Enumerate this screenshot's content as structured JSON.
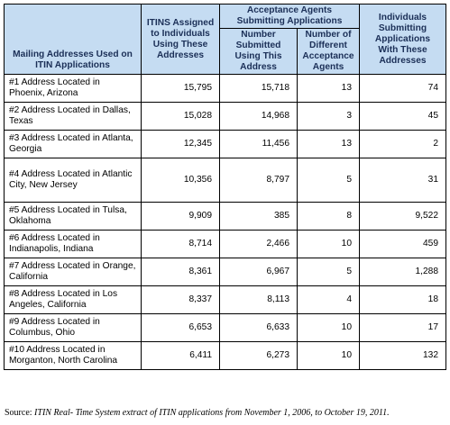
{
  "table": {
    "headers": {
      "address": "Mailing Addresses Used on ITIN Applications",
      "itins": "ITINS Assigned to Individuals Using These Addresses",
      "agents_group": "Acceptance Agents Submitting Applications",
      "submitted": "Number Submitted Using This Address",
      "num_agents": "Number of Different Acceptance Agents",
      "individuals": "Individuals Submitting Applications With These Addresses"
    },
    "rows": [
      {
        "address": "#1 Address Located in Phoenix, Arizona",
        "itins": "15,795",
        "submitted": "15,718",
        "agents": "13",
        "individuals": "74"
      },
      {
        "address": "#2 Address Located in Dallas, Texas",
        "itins": "15,028",
        "submitted": "14,968",
        "agents": "3",
        "individuals": "45"
      },
      {
        "address": "#3 Address Located in Atlanta, Georgia",
        "itins": "12,345",
        "submitted": "11,456",
        "agents": "13",
        "individuals": "2"
      },
      {
        "address": "#4 Address Located in Atlantic City, New Jersey",
        "itins": "10,356",
        "submitted": "8,797",
        "agents": "5",
        "individuals": "31"
      },
      {
        "address": "#5 Address Located in Tulsa, Oklahoma",
        "itins": "9,909",
        "submitted": "385",
        "agents": "8",
        "individuals": "9,522"
      },
      {
        "address": "#6 Address Located in Indianapolis, Indiana",
        "itins": "8,714",
        "submitted": "2,466",
        "agents": "10",
        "individuals": "459"
      },
      {
        "address": "#7 Address Located in Orange, California",
        "itins": "8,361",
        "submitted": "6,967",
        "agents": "5",
        "individuals": "1,288"
      },
      {
        "address": "#8 Address Located in Los Angeles, California",
        "itins": "8,337",
        "submitted": "8,113",
        "agents": "4",
        "individuals": "18"
      },
      {
        "address": "#9 Address Located in Columbus, Ohio",
        "itins": "6,653",
        "submitted": "6,633",
        "agents": "10",
        "individuals": "17"
      },
      {
        "address": "#10 Address Located in Morganton, North Carolina",
        "itins": "6,411",
        "submitted": "6,273",
        "agents": "10",
        "individuals": "132"
      }
    ]
  },
  "source": {
    "label": "Source:",
    "text": "ITIN Real- Time System extract of ITIN applications from November 1, 2006, to October 19, 2011."
  }
}
